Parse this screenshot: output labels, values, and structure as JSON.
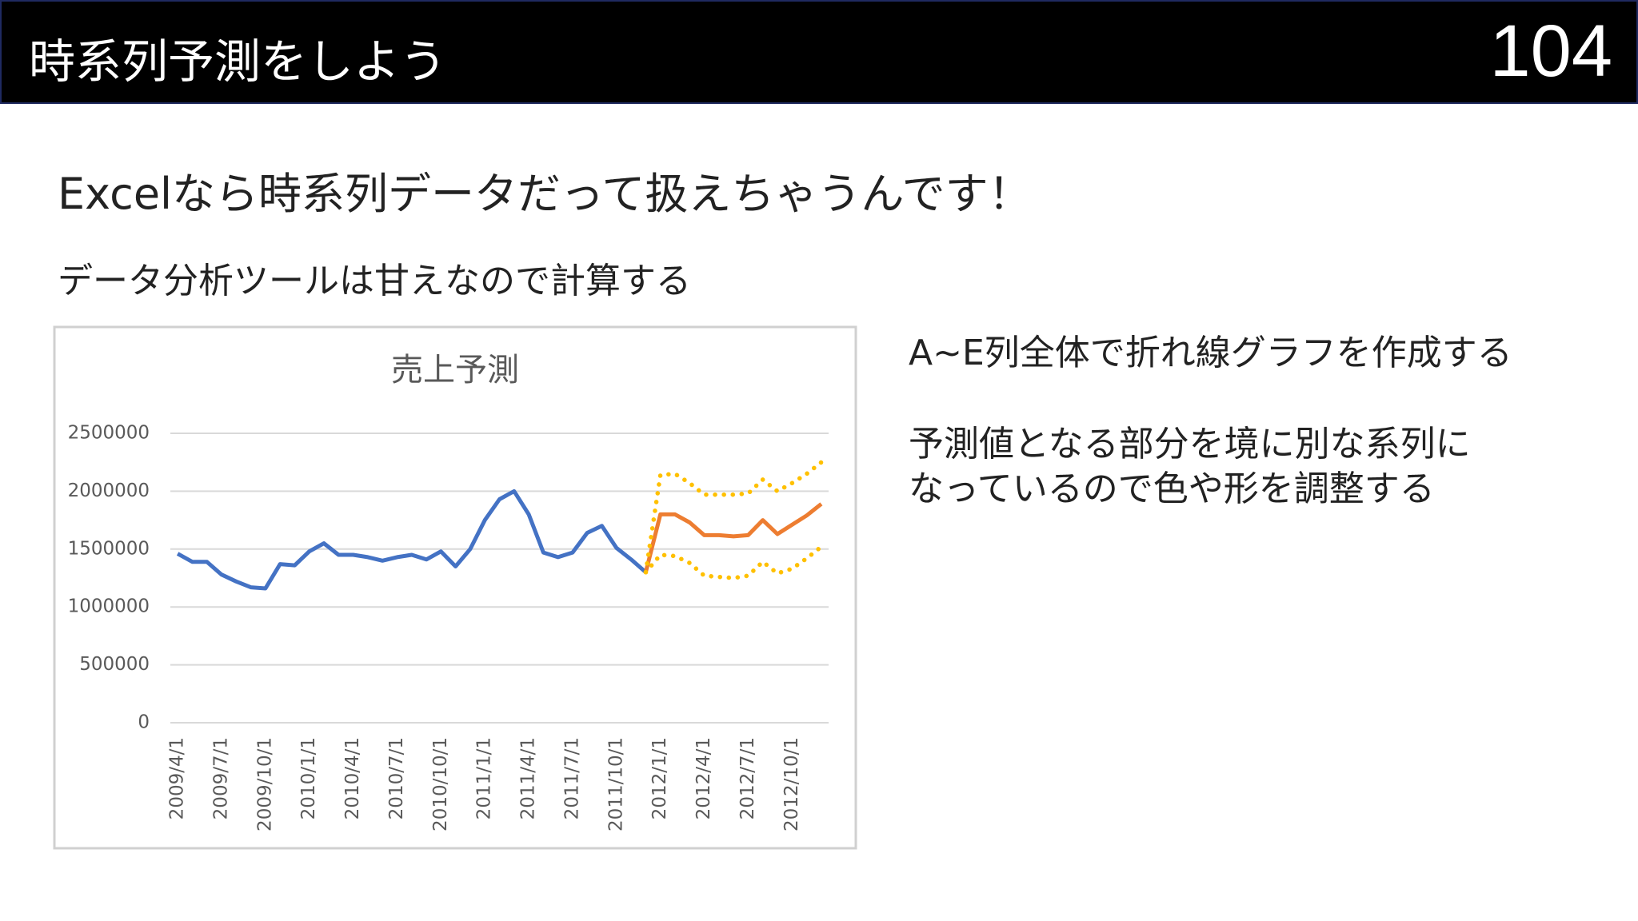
{
  "header": {
    "title": "時系列予測をしよう",
    "page_number": "104"
  },
  "body": {
    "heading": "Excelなら時系列データだって扱えちゃうんです！",
    "subheading": "データ分析ツールは甘えなので計算する"
  },
  "notes": [
    [
      "A~E列全体で折れ線グラフを作成する"
    ],
    [
      "予測値となる部分を境に別な系列に",
      "なっているので色や形を調整する"
    ]
  ],
  "chart_data": {
    "type": "line",
    "title": "売上予測",
    "categories": [
      "2009/4/1",
      null,
      null,
      "2009/7/1",
      null,
      null,
      "2009/10/1",
      null,
      null,
      "2010/1/1",
      null,
      null,
      "2010/4/1",
      null,
      null,
      "2010/7/1",
      null,
      null,
      "2010/10/1",
      null,
      null,
      "2011/1/1",
      null,
      null,
      "2011/4/1",
      null,
      null,
      "2011/7/1",
      null,
      null,
      "2011/10/1",
      null,
      null,
      "2012/1/1",
      null,
      null,
      "2012/4/1",
      null,
      null,
      "2012/7/1",
      null,
      null,
      "2012/10/1",
      null,
      null
    ],
    "series": [
      {
        "color": "#4472c4",
        "style": "solid",
        "values": [
          1460000,
          1390000,
          1390000,
          1280000,
          1220000,
          1170000,
          1160000,
          1370000,
          1360000,
          1480000,
          1550000,
          1450000,
          1450000,
          1430000,
          1400000,
          1430000,
          1450000,
          1410000,
          1480000,
          1350000,
          1500000,
          1750000,
          1930000,
          2000000,
          1800000,
          1470000,
          1430000,
          1470000,
          1640000,
          1700000,
          1510000,
          1410000,
          1300000,
          null,
          null,
          null,
          null,
          null,
          null,
          null,
          null,
          null,
          null,
          null,
          null
        ]
      },
      {
        "color": "#ed7d31",
        "style": "solid",
        "values": [
          null,
          null,
          null,
          null,
          null,
          null,
          null,
          null,
          null,
          null,
          null,
          null,
          null,
          null,
          null,
          null,
          null,
          null,
          null,
          null,
          null,
          null,
          null,
          null,
          null,
          null,
          null,
          null,
          null,
          null,
          null,
          null,
          1300000,
          1800000,
          1800000,
          1730000,
          1620000,
          1620000,
          1610000,
          1620000,
          1750000,
          1630000,
          1710000,
          1790000,
          1890000
        ]
      },
      {
        "color": "#ffc000",
        "style": "dotted",
        "values": [
          null,
          null,
          null,
          null,
          null,
          null,
          null,
          null,
          null,
          null,
          null,
          null,
          null,
          null,
          null,
          null,
          null,
          null,
          null,
          null,
          null,
          null,
          null,
          null,
          null,
          null,
          null,
          null,
          null,
          null,
          null,
          null,
          1300000,
          2140000,
          2150000,
          2070000,
          1970000,
          1970000,
          1970000,
          1980000,
          2100000,
          2000000,
          2070000,
          2150000,
          2250000
        ]
      },
      {
        "color": "#ffc000",
        "style": "dotted",
        "values": [
          null,
          null,
          null,
          null,
          null,
          null,
          null,
          null,
          null,
          null,
          null,
          null,
          null,
          null,
          null,
          null,
          null,
          null,
          null,
          null,
          null,
          null,
          null,
          null,
          null,
          null,
          null,
          null,
          null,
          null,
          null,
          null,
          1300000,
          1450000,
          1440000,
          1380000,
          1270000,
          1260000,
          1250000,
          1270000,
          1390000,
          1290000,
          1330000,
          1420000,
          1520000
        ]
      }
    ],
    "ylim": [
      0,
      2500000
    ],
    "yticks": [
      0,
      500000,
      1000000,
      1500000,
      2000000,
      2500000
    ],
    "grid": true
  }
}
